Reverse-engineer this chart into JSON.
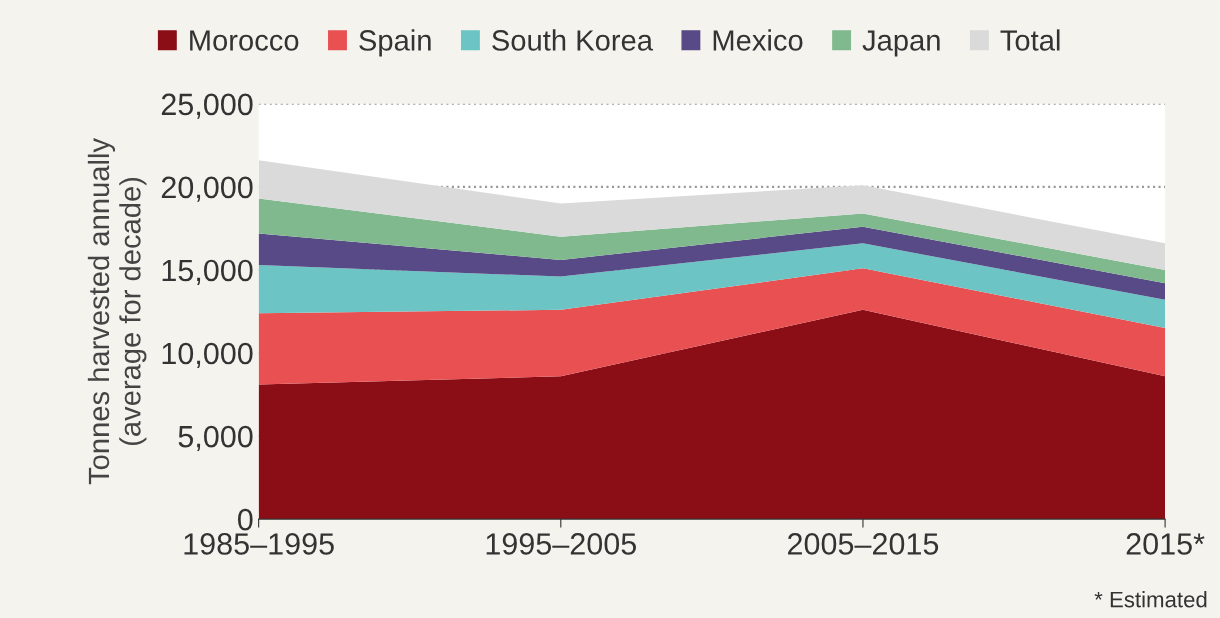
{
  "chart_data": {
    "type": "area",
    "stacked": true,
    "ylabel": "Tonnes harvested annually\n(average for decade)",
    "categories": [
      "1985–1995",
      "1995–2005",
      "2005–2015",
      "2015*"
    ],
    "series": [
      {
        "name": "Morocco",
        "color": "#8b0e17",
        "values": [
          8100,
          8600,
          12600,
          8600
        ]
      },
      {
        "name": "Spain",
        "color": "#e85052",
        "values": [
          4300,
          4000,
          2500,
          2900
        ]
      },
      {
        "name": "South Korea",
        "color": "#6cc4c4",
        "values": [
          2900,
          2000,
          1500,
          1700
        ]
      },
      {
        "name": "Mexico",
        "color": "#574a86",
        "values": [
          1900,
          1000,
          1000,
          1000
        ]
      },
      {
        "name": "Japan",
        "color": "#80b98e",
        "values": [
          2100,
          1400,
          800,
          800
        ]
      },
      {
        "name": "Total",
        "color": "#dadada",
        "values": [
          2300,
          2000,
          1700,
          1600
        ]
      }
    ],
    "ylim": [
      0,
      25000
    ],
    "yticks": [
      {
        "value": 0,
        "label": "0"
      },
      {
        "value": 5000,
        "label": "5,000"
      },
      {
        "value": 10000,
        "label": "10,000"
      },
      {
        "value": 15000,
        "label": "15,000"
      },
      {
        "value": 20000,
        "label": "20,000"
      },
      {
        "value": 25000,
        "label": "25,000"
      }
    ],
    "grid": "y",
    "legend": "top",
    "annotations": [
      "* Estimated"
    ]
  }
}
